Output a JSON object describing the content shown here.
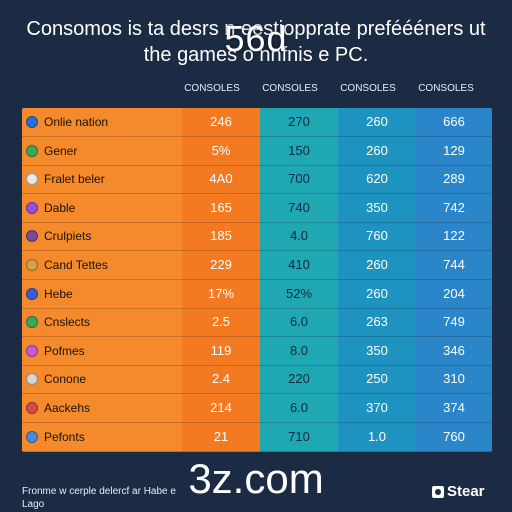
{
  "title": {
    "line1": "Consomos is ta desrs n eestiopprate preféééners ut",
    "line2": "the games o nnfnis e PC.",
    "overlay": "56d"
  },
  "chart_data": {
    "type": "table",
    "columns": [
      "",
      "CONSOLES",
      "CONSOLES",
      "CONSOLES",
      "CONSOLES"
    ],
    "rows": [
      {
        "label": "Onlie nation",
        "icon": "globe-icon",
        "values": [
          "246",
          "270",
          "260",
          "666"
        ]
      },
      {
        "label": "Gener",
        "icon": "leaf-icon",
        "values": [
          "5%",
          "150",
          "260",
          "129"
        ]
      },
      {
        "label": "Fralet beler",
        "icon": "image-icon",
        "values": [
          "4A0",
          "700",
          "620",
          "289"
        ]
      },
      {
        "label": "Dable",
        "icon": "star-icon",
        "values": [
          "165",
          "740",
          "350",
          "742"
        ]
      },
      {
        "label": "Crulpiets",
        "icon": "circle-icon",
        "values": [
          "185",
          "4.0",
          "760",
          "122"
        ]
      },
      {
        "label": "Cand Tettes",
        "icon": "circle-icon",
        "values": [
          "229",
          "410",
          "260",
          "744"
        ]
      },
      {
        "label": "Hebe",
        "icon": "facebook-icon",
        "values": [
          "17%",
          "52%",
          "260",
          "204"
        ]
      },
      {
        "label": "Cnslects",
        "icon": "circle-icon",
        "values": [
          "2.5",
          "6.0",
          "263",
          "749"
        ]
      },
      {
        "label": "Pofmes",
        "icon": "controller-icon",
        "values": [
          "119",
          "8.0",
          "350",
          "346"
        ]
      },
      {
        "label": "Conone",
        "icon": "circle-icon",
        "values": [
          "2.4",
          "220",
          "250",
          "310"
        ]
      },
      {
        "label": "Aackehs",
        "icon": "circle-icon",
        "values": [
          "214",
          "6.0",
          "370",
          "374"
        ]
      },
      {
        "label": "Pefonts",
        "icon": "circle-icon",
        "values": [
          "21",
          "710",
          "1.0",
          "760"
        ]
      }
    ],
    "column_colors": [
      "#f47a22",
      "#1fa7b3",
      "#1f93c0",
      "#2b86c9"
    ],
    "label_color": "#f58a2c"
  },
  "footer": {
    "note_line1": "Fronme w cerple delercf ar Habe e",
    "note_line2": "Lago",
    "watermark": "3z.com",
    "brand": "Stear"
  }
}
